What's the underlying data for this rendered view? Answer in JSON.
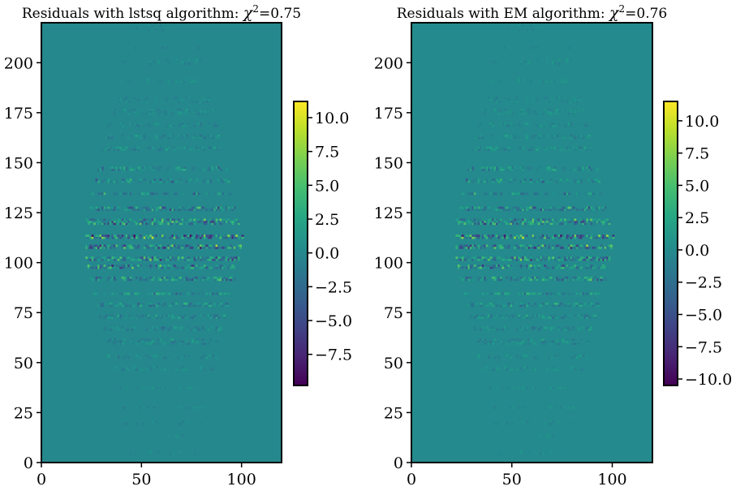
{
  "chart_data": [
    {
      "type": "heatmap",
      "title": "Residuals with lstsq algorithm: ",
      "title_chi": "χ",
      "title_sup": "2",
      "title_eq": "=0.75",
      "xlim": [
        0,
        120
      ],
      "ylim": [
        0,
        220
      ],
      "x_ticks": [
        {
          "value": 0,
          "label": "0"
        },
        {
          "value": 50,
          "label": "50"
        },
        {
          "value": 100,
          "label": "100"
        }
      ],
      "y_ticks": [
        {
          "value": 0,
          "label": "0"
        },
        {
          "value": 25,
          "label": "25"
        },
        {
          "value": 50,
          "label": "50"
        },
        {
          "value": 75,
          "label": "75"
        },
        {
          "value": 100,
          "label": "100"
        },
        {
          "value": 125,
          "label": "125"
        },
        {
          "value": 150,
          "label": "150"
        },
        {
          "value": 175,
          "label": "175"
        },
        {
          "value": 200,
          "label": "200"
        }
      ],
      "colorbar": {
        "colormap": "viridis",
        "range": [
          -9.8,
          11.2
        ],
        "ticks": [
          {
            "value": 10.0,
            "label": "10.0"
          },
          {
            "value": 7.5,
            "label": "7.5"
          },
          {
            "value": 5.0,
            "label": "5.0"
          },
          {
            "value": 2.5,
            "label": "2.5"
          },
          {
            "value": 0.0,
            "label": "0.0"
          },
          {
            "value": -2.5,
            "label": "−2.5"
          },
          {
            "value": -5.0,
            "label": "−5.0"
          },
          {
            "value": -7.5,
            "label": "−7.5"
          }
        ]
      },
      "background_value": 0.0,
      "residual_bands_y": [
        4,
        12,
        19,
        27,
        37,
        46,
        52,
        59,
        66,
        72,
        78,
        84,
        91,
        97,
        101,
        107,
        112,
        119,
        126,
        134,
        140,
        146,
        156,
        162,
        168,
        174,
        180,
        190,
        199,
        207,
        216
      ]
    },
    {
      "type": "heatmap",
      "title": "Residuals with EM algorithm: ",
      "title_chi": "χ",
      "title_sup": "2",
      "title_eq": "=0.76",
      "xlim": [
        0,
        120
      ],
      "ylim": [
        0,
        220
      ],
      "x_ticks": [
        {
          "value": 0,
          "label": "0"
        },
        {
          "value": 50,
          "label": "50"
        },
        {
          "value": 100,
          "label": "100"
        }
      ],
      "y_ticks": [
        {
          "value": 0,
          "label": "0"
        },
        {
          "value": 25,
          "label": "25"
        },
        {
          "value": 50,
          "label": "50"
        },
        {
          "value": 75,
          "label": "75"
        },
        {
          "value": 100,
          "label": "100"
        },
        {
          "value": 125,
          "label": "125"
        },
        {
          "value": 150,
          "label": "150"
        },
        {
          "value": 175,
          "label": "175"
        },
        {
          "value": 200,
          "label": "200"
        }
      ],
      "colorbar": {
        "colormap": "viridis",
        "range": [
          -10.5,
          11.5
        ],
        "ticks": [
          {
            "value": 10.0,
            "label": "10.0"
          },
          {
            "value": 7.5,
            "label": "7.5"
          },
          {
            "value": 5.0,
            "label": "5.0"
          },
          {
            "value": 2.5,
            "label": "2.5"
          },
          {
            "value": 0.0,
            "label": "0.0"
          },
          {
            "value": -2.5,
            "label": "−2.5"
          },
          {
            "value": -5.0,
            "label": "−5.0"
          },
          {
            "value": -7.5,
            "label": "−7.5"
          },
          {
            "value": -10.0,
            "label": "−10.0"
          }
        ]
      },
      "background_value": 0.0,
      "residual_bands_y": [
        4,
        12,
        19,
        27,
        37,
        46,
        52,
        59,
        66,
        72,
        78,
        84,
        91,
        97,
        101,
        107,
        112,
        119,
        126,
        134,
        140,
        146,
        156,
        162,
        168,
        174,
        180,
        190,
        199,
        207,
        216
      ]
    }
  ]
}
